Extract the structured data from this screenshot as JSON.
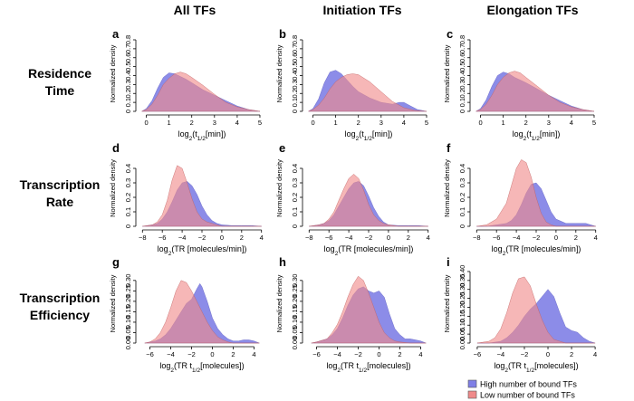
{
  "column_titles": [
    "All TFs",
    "Initiation TFs",
    "Elongation TFs"
  ],
  "row_titles": [
    [
      "Residence",
      "Time"
    ],
    [
      "Transcription",
      "Rate"
    ],
    [
      "Transcription",
      "Efficiency"
    ]
  ],
  "legend": {
    "high_label": "High number of bound TFs",
    "low_label": "Low number of bound TFs",
    "high_color": "#7f7fe6",
    "low_color": "#f08a8a",
    "overlap_color": "#a85cad"
  },
  "chart_data": [
    {
      "type": "area",
      "panel": "a",
      "row": 0,
      "col": 0,
      "xlabel": "log2(t1/2[min])",
      "ylabel": "Normalized density",
      "xlim": [
        -0.3,
        5.2
      ],
      "ylim": [
        0,
        0.8
      ],
      "xticks": [
        0,
        1,
        2,
        3,
        4,
        5
      ],
      "yticks": [
        0,
        0.1,
        0.2,
        0.3,
        0.4,
        0.5,
        0.6,
        0.7,
        0.8
      ],
      "series": [
        {
          "name": "High number of bound TFs",
          "x": [
            -0.2,
            0,
            0.25,
            0.5,
            0.75,
            1.0,
            1.25,
            1.5,
            1.75,
            2.0,
            2.5,
            3.0,
            3.5,
            4.0,
            4.5,
            5.0
          ],
          "y": [
            0.0,
            0.03,
            0.12,
            0.26,
            0.38,
            0.43,
            0.42,
            0.39,
            0.36,
            0.32,
            0.24,
            0.18,
            0.12,
            0.06,
            0.02,
            0.0
          ]
        },
        {
          "name": "Low number of bound TFs",
          "x": [
            -0.2,
            0,
            0.25,
            0.5,
            0.75,
            1.0,
            1.25,
            1.5,
            1.75,
            2.0,
            2.5,
            3.0,
            3.5,
            4.0,
            4.5,
            5.0
          ],
          "y": [
            0.0,
            0.02,
            0.08,
            0.18,
            0.3,
            0.37,
            0.42,
            0.44,
            0.42,
            0.38,
            0.29,
            0.19,
            0.1,
            0.05,
            0.02,
            0.0
          ]
        }
      ]
    },
    {
      "type": "area",
      "panel": "b",
      "row": 0,
      "col": 1,
      "xlabel": "log2(t1/2[min])",
      "ylabel": "Normalized density",
      "xlim": [
        -0.3,
        5.2
      ],
      "ylim": [
        0,
        0.8
      ],
      "xticks": [
        0,
        1,
        2,
        3,
        4,
        5
      ],
      "yticks": [
        0,
        0.1,
        0.2,
        0.3,
        0.4,
        0.5,
        0.6,
        0.7,
        0.8
      ],
      "series": [
        {
          "name": "High number of bound TFs",
          "x": [
            -0.2,
            0,
            0.25,
            0.5,
            0.75,
            1.0,
            1.25,
            1.5,
            1.75,
            2.0,
            2.5,
            3.0,
            3.5,
            3.8,
            4.0,
            4.3,
            4.6,
            5.0
          ],
          "y": [
            0.0,
            0.03,
            0.14,
            0.32,
            0.44,
            0.46,
            0.42,
            0.35,
            0.28,
            0.22,
            0.15,
            0.1,
            0.08,
            0.1,
            0.1,
            0.06,
            0.02,
            0.0
          ]
        },
        {
          "name": "Low number of bound TFs",
          "x": [
            -0.2,
            0,
            0.25,
            0.5,
            0.75,
            1.0,
            1.25,
            1.5,
            1.75,
            2.0,
            2.5,
            3.0,
            3.5,
            4.0,
            4.5,
            5.0
          ],
          "y": [
            0.0,
            0.02,
            0.07,
            0.15,
            0.25,
            0.33,
            0.38,
            0.41,
            0.42,
            0.41,
            0.33,
            0.22,
            0.11,
            0.04,
            0.01,
            0.0
          ]
        }
      ]
    },
    {
      "type": "area",
      "panel": "c",
      "row": 0,
      "col": 2,
      "xlabel": "log2(t1/2[min])",
      "ylabel": "Normalized density",
      "xlim": [
        -0.3,
        5.2
      ],
      "ylim": [
        0,
        0.8
      ],
      "xticks": [
        0,
        1,
        2,
        3,
        4,
        5
      ],
      "yticks": [
        0,
        0.1,
        0.2,
        0.3,
        0.4,
        0.5,
        0.6,
        0.7,
        0.8
      ],
      "series": [
        {
          "name": "High number of bound TFs",
          "x": [
            -0.2,
            0,
            0.25,
            0.5,
            0.75,
            1.0,
            1.25,
            1.5,
            1.75,
            2.0,
            2.5,
            3.0,
            3.5,
            4.0,
            4.5,
            5.0
          ],
          "y": [
            0.0,
            0.03,
            0.13,
            0.28,
            0.4,
            0.44,
            0.42,
            0.38,
            0.35,
            0.32,
            0.25,
            0.18,
            0.12,
            0.06,
            0.02,
            0.0
          ]
        },
        {
          "name": "Low number of bound TFs",
          "x": [
            -0.2,
            0,
            0.25,
            0.5,
            0.75,
            1.0,
            1.25,
            1.5,
            1.75,
            2.0,
            2.5,
            3.0,
            3.5,
            4.0,
            4.5,
            5.0
          ],
          "y": [
            0.0,
            0.02,
            0.08,
            0.18,
            0.3,
            0.38,
            0.43,
            0.45,
            0.43,
            0.38,
            0.28,
            0.18,
            0.1,
            0.05,
            0.02,
            0.0
          ]
        }
      ]
    },
    {
      "type": "area",
      "panel": "d",
      "row": 1,
      "col": 0,
      "xlabel": "log2(TR [molecules/min])",
      "ylabel": "Normalized density",
      "xlim": [
        -8.3,
        4.3
      ],
      "ylim": [
        0,
        0.5
      ],
      "xticks": [
        -8,
        -6,
        -4,
        -2,
        0,
        2,
        4
      ],
      "yticks": [
        0,
        0.1,
        0.2,
        0.3,
        0.4
      ],
      "series": [
        {
          "name": "High number of bound TFs",
          "x": [
            -8,
            -7,
            -6.5,
            -6,
            -5.5,
            -5,
            -4.5,
            -4,
            -3.5,
            -3,
            -2.5,
            -2,
            -1.5,
            -1,
            -0.5,
            0,
            1,
            2,
            3,
            4
          ],
          "y": [
            0.0,
            0.01,
            0.02,
            0.05,
            0.1,
            0.17,
            0.25,
            0.3,
            0.31,
            0.28,
            0.22,
            0.14,
            0.08,
            0.04,
            0.02,
            0.01,
            0.005,
            0.005,
            0.005,
            0.0
          ]
        },
        {
          "name": "Low number of bound TFs",
          "x": [
            -8,
            -7,
            -6.5,
            -6,
            -5.5,
            -5,
            -4.5,
            -4,
            -3.5,
            -3,
            -2.5,
            -2,
            -1.5,
            -1,
            -0.5,
            0,
            1,
            2,
            3,
            4
          ],
          "y": [
            0.0,
            0.01,
            0.03,
            0.08,
            0.18,
            0.32,
            0.42,
            0.4,
            0.3,
            0.19,
            0.1,
            0.05,
            0.03,
            0.02,
            0.01,
            0.0,
            0.0,
            0.0,
            0.0,
            0.0
          ]
        }
      ]
    },
    {
      "type": "area",
      "panel": "e",
      "row": 1,
      "col": 1,
      "xlabel": "log2(TR [molecules/min])",
      "ylabel": "Normalized density",
      "xlim": [
        -8.3,
        4.3
      ],
      "ylim": [
        0,
        0.5
      ],
      "xticks": [
        -8,
        -6,
        -4,
        -2,
        0,
        2,
        4
      ],
      "yticks": [
        0,
        0.1,
        0.2,
        0.3,
        0.4
      ],
      "series": [
        {
          "name": "High number of bound TFs",
          "x": [
            -8,
            -7,
            -6.5,
            -6,
            -5.5,
            -5,
            -4.5,
            -4,
            -3.5,
            -3,
            -2.5,
            -2,
            -1.5,
            -1,
            -0.5,
            0,
            1,
            2,
            3,
            4
          ],
          "y": [
            0.0,
            0.01,
            0.02,
            0.04,
            0.08,
            0.14,
            0.2,
            0.26,
            0.3,
            0.31,
            0.28,
            0.21,
            0.13,
            0.07,
            0.03,
            0.01,
            0.005,
            0.005,
            0.005,
            0.0
          ]
        },
        {
          "name": "Low number of bound TFs",
          "x": [
            -8,
            -7,
            -6.5,
            -6,
            -5.5,
            -5,
            -4.5,
            -4,
            -3.5,
            -3,
            -2.5,
            -2,
            -1.5,
            -1,
            -0.5,
            0,
            1,
            2,
            3,
            4
          ],
          "y": [
            0.0,
            0.01,
            0.02,
            0.05,
            0.1,
            0.18,
            0.26,
            0.33,
            0.36,
            0.33,
            0.25,
            0.15,
            0.08,
            0.04,
            0.02,
            0.01,
            0.0,
            0.0,
            0.0,
            0.0
          ]
        }
      ]
    },
    {
      "type": "area",
      "panel": "f",
      "row": 1,
      "col": 2,
      "xlabel": "log2(TR [molecules/min])",
      "ylabel": "Normalized density",
      "xlim": [
        -8.3,
        4.3
      ],
      "ylim": [
        0,
        0.5
      ],
      "xticks": [
        -8,
        -6,
        -4,
        -2,
        0,
        2,
        4
      ],
      "yticks": [
        0,
        0.1,
        0.2,
        0.3,
        0.4
      ],
      "series": [
        {
          "name": "High number of bound TFs",
          "x": [
            -8,
            -7,
            -6,
            -5,
            -4.5,
            -4,
            -3.5,
            -3,
            -2.5,
            -2,
            -1.5,
            -1,
            -0.5,
            0,
            1,
            2,
            3,
            3.5,
            4
          ],
          "y": [
            0.0,
            0.0,
            0.01,
            0.02,
            0.04,
            0.08,
            0.15,
            0.23,
            0.29,
            0.3,
            0.26,
            0.18,
            0.1,
            0.05,
            0.02,
            0.02,
            0.02,
            0.01,
            0.0
          ]
        },
        {
          "name": "Low number of bound TFs",
          "x": [
            -8,
            -7,
            -6,
            -5,
            -4.5,
            -4,
            -3.5,
            -3,
            -2.5,
            -2,
            -1.5,
            -1,
            -0.5,
            0,
            1,
            2,
            3,
            3.5,
            4
          ],
          "y": [
            0.0,
            0.01,
            0.05,
            0.16,
            0.28,
            0.4,
            0.46,
            0.44,
            0.34,
            0.2,
            0.09,
            0.03,
            0.01,
            0.0,
            0.0,
            0.0,
            0.0,
            0.0,
            0.0
          ]
        }
      ]
    },
    {
      "type": "area",
      "panel": "g",
      "row": 2,
      "col": 0,
      "xlabel": "log2(TR t1/2[molecules])",
      "ylabel": "Normalized density",
      "xlim": [
        -7,
        5
      ],
      "ylim": [
        0,
        0.36
      ],
      "xticks": [
        -6,
        -4,
        -2,
        0,
        2,
        4
      ],
      "yticks": [
        0,
        0.05,
        0.1,
        0.15,
        0.2,
        0.25,
        0.3
      ],
      "series": [
        {
          "name": "High number of bound TFs",
          "x": [
            -6.5,
            -6,
            -5.5,
            -5,
            -4.5,
            -4,
            -3.5,
            -3,
            -2.5,
            -2,
            -1.5,
            -1.2,
            -1,
            -0.5,
            0,
            0.5,
            1,
            1.5,
            2,
            2.5,
            3,
            3.5,
            4,
            4.5
          ],
          "y": [
            0.0,
            0.005,
            0.01,
            0.02,
            0.04,
            0.07,
            0.11,
            0.15,
            0.19,
            0.21,
            0.26,
            0.285,
            0.27,
            0.2,
            0.12,
            0.07,
            0.04,
            0.02,
            0.01,
            0.01,
            0.015,
            0.015,
            0.01,
            0.0
          ]
        },
        {
          "name": "Low number of bound TFs",
          "x": [
            -6.5,
            -6,
            -5.5,
            -5,
            -4.5,
            -4,
            -3.5,
            -3,
            -2.5,
            -2,
            -1.5,
            -1,
            -0.5,
            0,
            0.5,
            1,
            1.5,
            2,
            3,
            4,
            4.5
          ],
          "y": [
            0.0,
            0.005,
            0.02,
            0.05,
            0.1,
            0.17,
            0.25,
            0.3,
            0.29,
            0.25,
            0.2,
            0.15,
            0.1,
            0.06,
            0.03,
            0.015,
            0.005,
            0.0,
            0.0,
            0.0,
            0.0
          ]
        }
      ]
    },
    {
      "type": "area",
      "panel": "h",
      "row": 2,
      "col": 1,
      "xlabel": "log2(TR t1/2[molecules])",
      "ylabel": "Normalized density",
      "xlim": [
        -7,
        5
      ],
      "ylim": [
        0,
        0.36
      ],
      "xticks": [
        -6,
        -4,
        -2,
        0,
        2,
        4
      ],
      "yticks": [
        0,
        0.05,
        0.1,
        0.15,
        0.2,
        0.25,
        0.3
      ],
      "series": [
        {
          "name": "High number of bound TFs",
          "x": [
            -6.5,
            -6,
            -5,
            -4.5,
            -4,
            -3.5,
            -3,
            -2.5,
            -2,
            -1.5,
            -1,
            -0.5,
            0,
            0.5,
            1,
            1.5,
            2,
            2.5,
            3,
            3.5,
            4,
            4.5
          ],
          "y": [
            0.0,
            0.005,
            0.02,
            0.04,
            0.07,
            0.12,
            0.18,
            0.23,
            0.26,
            0.27,
            0.25,
            0.24,
            0.25,
            0.22,
            0.14,
            0.07,
            0.04,
            0.02,
            0.02,
            0.015,
            0.01,
            0.0
          ]
        },
        {
          "name": "Low number of bound TFs",
          "x": [
            -6.5,
            -6,
            -5,
            -4.5,
            -4,
            -3.5,
            -3,
            -2.5,
            -2,
            -1.5,
            -1,
            -0.5,
            0,
            0.5,
            1,
            1.5,
            2,
            3,
            4,
            4.5
          ],
          "y": [
            0.0,
            0.005,
            0.02,
            0.05,
            0.09,
            0.15,
            0.22,
            0.28,
            0.32,
            0.3,
            0.24,
            0.17,
            0.1,
            0.05,
            0.025,
            0.01,
            0.005,
            0.0,
            0.0,
            0.0
          ]
        }
      ]
    },
    {
      "type": "area",
      "panel": "i",
      "row": 2,
      "col": 2,
      "xlabel": "log2(TR t1/2[molecules])",
      "ylabel": "Normalized density",
      "xlim": [
        -6.3,
        4.3
      ],
      "ylim": [
        0,
        0.42
      ],
      "xticks": [
        -6,
        -4,
        -2,
        0,
        2,
        4
      ],
      "yticks": [
        0,
        0.05,
        0.1,
        0.15,
        0.2,
        0.25,
        0.3,
        0.35,
        0.4
      ],
      "series": [
        {
          "name": "High number of bound TFs",
          "x": [
            -6,
            -5,
            -4.5,
            -4,
            -3.5,
            -3,
            -2.5,
            -2,
            -1.5,
            -1,
            -0.5,
            0,
            0.5,
            1,
            1.5,
            2,
            2.5,
            3,
            3.5,
            4
          ],
          "y": [
            0.0,
            0.0,
            0.005,
            0.01,
            0.03,
            0.06,
            0.1,
            0.15,
            0.19,
            0.22,
            0.26,
            0.3,
            0.26,
            0.17,
            0.09,
            0.07,
            0.06,
            0.03,
            0.01,
            0.0
          ]
        },
        {
          "name": "Low number of bound TFs",
          "x": [
            -6,
            -5,
            -4.5,
            -4,
            -3.5,
            -3,
            -2.5,
            -2,
            -1.5,
            -1,
            -0.5,
            0,
            0.5,
            1,
            1.5,
            2,
            3,
            4
          ],
          "y": [
            0.0,
            0.01,
            0.03,
            0.08,
            0.17,
            0.28,
            0.36,
            0.37,
            0.32,
            0.22,
            0.13,
            0.06,
            0.02,
            0.01,
            0.0,
            0.0,
            0.0,
            0.0
          ]
        }
      ]
    }
  ]
}
